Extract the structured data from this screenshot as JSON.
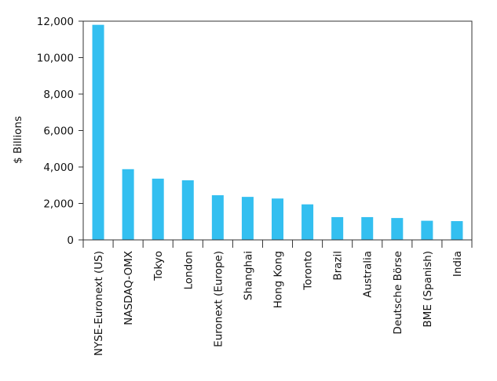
{
  "chart_data": {
    "type": "bar",
    "title": "",
    "xlabel": "",
    "ylabel": "$ Billions",
    "ylim": [
      0,
      12000
    ],
    "yticks": [
      0,
      2000,
      4000,
      6000,
      8000,
      10000,
      12000
    ],
    "ytick_labels": [
      "0",
      "2,000",
      "4,000",
      "6,000",
      "8,000",
      "10,000",
      "12,000"
    ],
    "grid": false,
    "bar_color": "#33bff0",
    "categories": [
      "NYSE-Euronext (US)",
      "NASDAQ-OMX",
      "Tokyo",
      "London",
      "Euronext (Europe)",
      "Shanghai",
      "Hong Kong",
      "Toronto",
      "Brazil",
      "Australia",
      "Deutsche Börse",
      "BME (Spanish)",
      "India"
    ],
    "values": [
      11800,
      3880,
      3360,
      3270,
      2450,
      2360,
      2270,
      1950,
      1250,
      1250,
      1200,
      1050,
      1030
    ]
  }
}
